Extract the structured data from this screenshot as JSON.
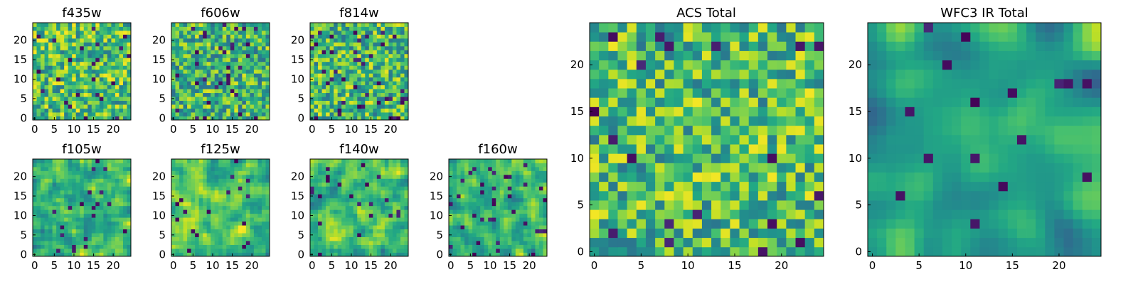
{
  "colormap": "viridis",
  "chart_data": [
    {
      "type": "heatmap",
      "title": "f435w",
      "grid": [
        25,
        25
      ],
      "xlim": [
        0,
        24
      ],
      "ylim": [
        0,
        24
      ],
      "xticks": [
        0,
        5,
        10,
        15,
        20
      ],
      "yticks": [
        0,
        5,
        10,
        15,
        20
      ],
      "seed": 11,
      "style": "noise",
      "dark_fraction": 0.035,
      "bias": 0.72
    },
    {
      "type": "heatmap",
      "title": "f606w",
      "grid": [
        25,
        25
      ],
      "xlim": [
        0,
        24
      ],
      "ylim": [
        0,
        24
      ],
      "xticks": [
        0,
        5,
        10,
        15,
        20
      ],
      "yticks": [
        0,
        5,
        10,
        15,
        20
      ],
      "seed": 23,
      "style": "noise",
      "dark_fraction": 0.045,
      "bias": 0.64
    },
    {
      "type": "heatmap",
      "title": "f814w",
      "grid": [
        25,
        25
      ],
      "xlim": [
        0,
        24
      ],
      "ylim": [
        0,
        24
      ],
      "xticks": [
        0,
        5,
        10,
        15,
        20
      ],
      "yticks": [
        0,
        5,
        10,
        15,
        20
      ],
      "seed": 37,
      "style": "noise",
      "dark_fraction": 0.05,
      "bias": 0.68
    },
    {
      "type": "heatmap",
      "title": "f105w",
      "grid": [
        25,
        25
      ],
      "xlim": [
        0,
        24
      ],
      "ylim": [
        0,
        24
      ],
      "xticks": [
        0,
        5,
        10,
        15,
        20
      ],
      "yticks": [
        0,
        5,
        10,
        15,
        20
      ],
      "seed": 41,
      "style": "smooth",
      "dark_fraction": 0.03,
      "bias": 0.7
    },
    {
      "type": "heatmap",
      "title": "f125w",
      "grid": [
        25,
        25
      ],
      "xlim": [
        0,
        24
      ],
      "ylim": [
        0,
        24
      ],
      "xticks": [
        0,
        5,
        10,
        15,
        20
      ],
      "yticks": [
        0,
        5,
        10,
        15,
        20
      ],
      "seed": 53,
      "style": "smooth",
      "dark_fraction": 0.03,
      "bias": 0.72
    },
    {
      "type": "heatmap",
      "title": "f140w",
      "grid": [
        25,
        25
      ],
      "xlim": [
        0,
        24
      ],
      "ylim": [
        0,
        24
      ],
      "xticks": [
        0,
        5,
        10,
        15,
        20
      ],
      "yticks": [
        0,
        5,
        10,
        15,
        20
      ],
      "seed": 67,
      "style": "smooth",
      "dark_fraction": 0.035,
      "bias": 0.68
    },
    {
      "type": "heatmap",
      "title": "f160w",
      "grid": [
        25,
        25
      ],
      "xlim": [
        0,
        24
      ],
      "ylim": [
        0,
        24
      ],
      "xticks": [
        0,
        5,
        10,
        15,
        20
      ],
      "yticks": [
        0,
        5,
        10,
        15,
        20
      ],
      "seed": 79,
      "style": "smooth",
      "dark_fraction": 0.05,
      "bias": 0.62
    },
    {
      "type": "heatmap",
      "title": "ACS Total",
      "grid": [
        25,
        25
      ],
      "xlim": [
        0,
        24
      ],
      "ylim": [
        0,
        24
      ],
      "xticks": [
        0,
        5,
        10,
        15,
        20
      ],
      "yticks": [
        0,
        5,
        10,
        15,
        20
      ],
      "seed": 97,
      "style": "noise",
      "dark_fraction": 0.02,
      "bias": 0.7
    },
    {
      "type": "heatmap",
      "title": "WFC3 IR Total",
      "grid": [
        25,
        25
      ],
      "xlim": [
        0,
        24
      ],
      "ylim": [
        0,
        24
      ],
      "xticks": [
        0,
        5,
        10,
        15,
        20
      ],
      "yticks": [
        0,
        5,
        10,
        15,
        20
      ],
      "seed": 113,
      "style": "blob",
      "dark_fraction": 0.02,
      "bias": 0.55
    }
  ]
}
